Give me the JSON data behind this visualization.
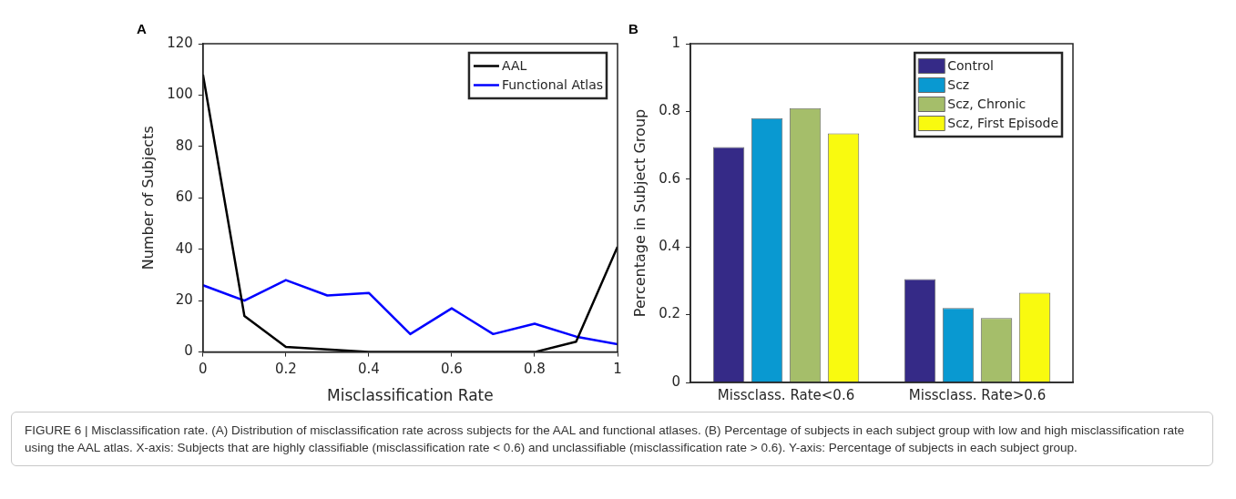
{
  "chart_data": [
    {
      "type": "line",
      "title": "A",
      "xlabel": "Misclassification Rate",
      "ylabel": "Number of Subjects",
      "x": [
        0,
        0.1,
        0.2,
        0.3,
        0.4,
        0.5,
        0.6,
        0.7,
        0.8,
        0.9,
        1
      ],
      "series": [
        {
          "name": "AAL",
          "color": "#000000",
          "values": [
            108,
            14,
            2,
            1,
            0,
            0,
            0,
            0,
            0,
            4,
            41
          ]
        },
        {
          "name": "Functional Atlas",
          "color": "#0000ff",
          "values": [
            26,
            20,
            28,
            22,
            23,
            7,
            17,
            7,
            11,
            6,
            3
          ]
        }
      ],
      "xlim": [
        0,
        1
      ],
      "xticks": [
        0,
        0.2,
        0.4,
        0.6,
        0.8,
        1
      ],
      "ylim": [
        0,
        120
      ],
      "yticks": [
        0,
        20,
        40,
        60,
        80,
        100,
        120
      ],
      "grid": false,
      "legend": "top right",
      "marker": "none",
      "line_style": "solid",
      "annotations": [
        "FIGURE 6 | Misclassification rate. (A) Distribution of misclassification rate across subjects for the AAL and functional atlases. (B) Percentage of subjects in each subject group with low and high misclassification rate using the AAL atlas. X-axis: Subjects that are highly classifiable (misclassification rate < 0.6) and unclassifiable (misclassification rate > 0.6). Y-axis: Percentage of subjects in each subject group."
      ]
    },
    {
      "type": "bar",
      "title": "B",
      "ylabel": "Percentage in Subject Group",
      "categories": [
        "Missclass. Rate<0.6",
        "Missclass. Rate>0.6"
      ],
      "series": [
        {
          "name": "Control",
          "color": "#352a87",
          "values": [
            0.695,
            0.305
          ]
        },
        {
          "name": "Scz",
          "color": "#0999d1",
          "values": [
            0.78,
            0.22
          ]
        },
        {
          "name": "Scz, Chronic",
          "color": "#a5be6a",
          "values": [
            0.81,
            0.19
          ]
        },
        {
          "name": "Scz, First Episode",
          "color": "#f9fa0f",
          "values": [
            0.735,
            0.265
          ]
        }
      ],
      "ylim": [
        0,
        1
      ],
      "yticks": [
        0,
        0.2,
        0.4,
        0.6,
        0.8,
        1
      ],
      "grid": false,
      "legend": "top right"
    }
  ]
}
